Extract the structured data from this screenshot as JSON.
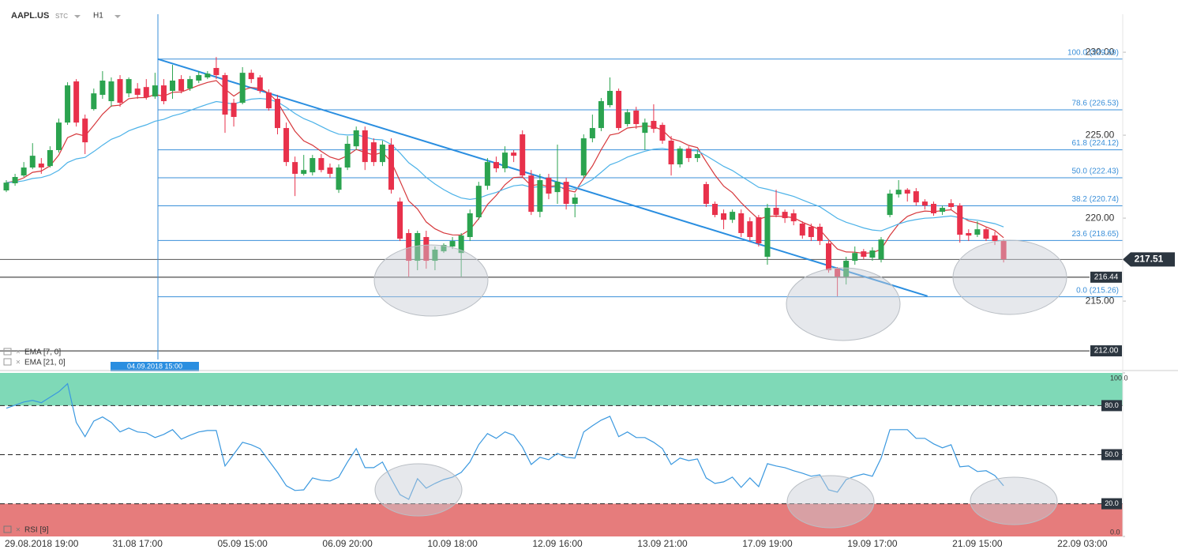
{
  "header": {
    "symbol": "AAPL.US",
    "type": "STC",
    "interval": "H1"
  },
  "chart_data": [
    {
      "type": "candlestick",
      "categories": [
        null,
        null,
        null,
        "29.08.2018 19:00",
        null,
        null,
        null,
        null,
        null,
        null,
        null,
        null,
        null,
        null,
        null,
        "31.08 17:00",
        null,
        null,
        null,
        null,
        null,
        null,
        null,
        null,
        null,
        null,
        null,
        "05.09 15:00",
        null,
        null,
        null,
        null,
        null,
        null,
        null,
        null,
        null,
        null,
        null,
        "06.09 20:00",
        null,
        null,
        null,
        null,
        null,
        null,
        null,
        null,
        null,
        null,
        null,
        "10.09 18:00",
        null,
        null,
        null,
        null,
        null,
        null,
        null,
        null,
        null,
        null,
        null,
        "12.09 16:00",
        null,
        null,
        null,
        null,
        null,
        null,
        null,
        null,
        null,
        null,
        null,
        "13.09 21:00",
        null,
        null,
        null,
        null,
        null,
        null,
        null,
        null,
        null,
        null,
        null,
        "17.09 19:00",
        null,
        null,
        null,
        null,
        null,
        null,
        null,
        null,
        null,
        null,
        null,
        "19.09 17:00",
        null,
        null,
        null,
        null,
        null,
        null,
        null,
        null,
        null,
        null,
        null,
        "21.09 15:00",
        null,
        null,
        null,
        null,
        null,
        null,
        null,
        null,
        null,
        null,
        null,
        "22.09 03:00"
      ],
      "open": [
        221.67,
        222.1,
        222.57,
        223.05,
        223.29,
        223.14,
        224.1,
        225.76,
        228.24,
        226.0,
        226.57,
        227.43,
        227.05,
        228.38,
        227.52,
        227.81,
        227.9,
        227.33,
        228.0,
        227.67,
        228.38,
        227.81,
        228.29,
        228.48,
        229.05,
        228.62,
        226.95,
        226.95,
        228.76,
        228.48,
        227.57,
        227.19,
        225.43,
        223.38,
        222.67,
        222.76,
        223.62,
        223.05,
        221.71,
        223.05,
        224.33,
        225.29,
        224.57,
        223.38,
        224.43,
        221.0,
        219.1,
        217.43,
        218.86,
        217.43,
        218.0,
        218.29,
        217.9,
        218.86,
        220.05,
        221.95,
        223.38,
        223.0,
        223.95,
        225.05,
        222.57,
        220.38,
        222.43,
        221.57,
        222.19,
        220.86,
        222.57,
        224.81,
        225.43,
        226.81,
        227.67,
        225.67,
        226.48,
        225.14,
        225.86,
        225.62,
        224.67,
        223.24,
        224.19,
        223.62,
        222.05,
        220.86,
        220.29,
        219.9,
        220.29,
        219.81,
        220.05,
        217.67,
        220.62,
        220.38,
        220.29,
        219.67,
        219.48,
        219.48,
        218.48,
        216.95,
        216.48,
        217.43,
        218.0,
        217.62,
        217.52,
        220.19,
        221.43,
        221.71,
        221.62,
        221.0,
        220.86,
        220.38,
        220.9,
        220.76,
        219.1,
        219.0,
        219.33,
        218.95,
        218.62,
        null,
        null,
        null,
        null,
        null,
        null,
        null,
        null,
        null
      ],
      "high": [
        222.29,
        222.67,
        223.38,
        224.52,
        223.62,
        224.33,
        226.0,
        228.19,
        228.38,
        226.24,
        227.81,
        228.86,
        228.48,
        228.62,
        228.48,
        228.14,
        228.38,
        228.76,
        228.38,
        229.24,
        228.62,
        228.57,
        228.86,
        228.86,
        229.71,
        228.76,
        227.19,
        229.1,
        228.95,
        228.62,
        227.76,
        227.43,
        225.76,
        223.71,
        223.81,
        223.81,
        223.86,
        223.29,
        223.24,
        224.95,
        225.52,
        225.52,
        224.81,
        224.67,
        224.81,
        221.24,
        219.33,
        219.24,
        219.24,
        218.29,
        218.48,
        218.86,
        219.1,
        220.52,
        222.19,
        223.62,
        223.71,
        224.33,
        224.1,
        225.29,
        222.9,
        222.67,
        222.67,
        224.43,
        222.43,
        221.48,
        225.05,
        226.24,
        227.24,
        228.48,
        227.81,
        226.57,
        226.71,
        226.0,
        226.86,
        225.76,
        224.95,
        224.33,
        224.33,
        224.1,
        222.19,
        221.0,
        220.52,
        220.52,
        220.52,
        220.05,
        220.19,
        220.86,
        221.71,
        220.52,
        220.52,
        219.81,
        219.67,
        219.67,
        218.62,
        217.05,
        217.67,
        218.29,
        218.14,
        218.24,
        218.86,
        221.71,
        222.29,
        221.81,
        221.81,
        221.14,
        221.0,
        220.76,
        221.14,
        220.9,
        219.33,
        219.81,
        219.43,
        219.19,
        218.71,
        null,
        null,
        null,
        null,
        null,
        null,
        null,
        null,
        null
      ],
      "low": [
        221.57,
        221.95,
        222.48,
        222.95,
        222.67,
        223.05,
        223.95,
        225.62,
        225.52,
        223.86,
        226.48,
        227.19,
        226.71,
        226.71,
        227.29,
        227.19,
        227.14,
        227.19,
        226.86,
        227.19,
        227.52,
        227.67,
        228.14,
        228.38,
        228.38,
        225.14,
        225.52,
        226.86,
        228.14,
        227.52,
        226.48,
        225.05,
        223.14,
        221.33,
        222.57,
        222.57,
        222.76,
        222.43,
        221.52,
        222.9,
        224.1,
        222.9,
        223.14,
        223.14,
        221.48,
        218.62,
        216.48,
        216.86,
        216.95,
        216.86,
        217.9,
        218.14,
        216.48,
        218.62,
        219.9,
        221.71,
        222.76,
        222.76,
        223.38,
        222.43,
        220.19,
        220.05,
        221.14,
        220.86,
        220.52,
        220.05,
        222.43,
        224.57,
        225.24,
        226.67,
        225.29,
        225.52,
        225.38,
        224.1,
        225.14,
        224.48,
        222.57,
        223.05,
        223.38,
        223.38,
        220.67,
        220.05,
        219.33,
        219.71,
        218.86,
        218.62,
        218.29,
        217.19,
        220.05,
        219.71,
        219.57,
        218.76,
        218.62,
        218.38,
        216.71,
        215.29,
        216.0,
        217.19,
        217.52,
        217.43,
        217.33,
        220.05,
        221.24,
        221.0,
        220.76,
        220.52,
        220.14,
        220.19,
        220.52,
        218.52,
        218.62,
        218.86,
        218.62,
        218.38,
        217.33,
        null,
        null,
        null,
        null,
        null,
        null,
        null,
        null,
        null
      ],
      "close": [
        222.14,
        222.48,
        223.05,
        223.76,
        223.05,
        224.1,
        225.76,
        228.0,
        225.76,
        224.57,
        227.52,
        228.29,
        228.24,
        226.95,
        228.38,
        227.43,
        227.29,
        228.0,
        227.05,
        228.29,
        227.67,
        228.38,
        228.62,
        228.71,
        228.62,
        226.24,
        226.1,
        228.76,
        228.38,
        227.67,
        226.62,
        225.43,
        223.38,
        222.67,
        222.9,
        223.62,
        222.9,
        222.67,
        223.05,
        224.48,
        225.29,
        223.38,
        223.38,
        224.43,
        221.71,
        218.76,
        217.43,
        219.1,
        217.43,
        218.1,
        218.38,
        218.62,
        218.95,
        220.29,
        221.95,
        223.38,
        223.0,
        223.95,
        223.76,
        222.57,
        220.38,
        222.29,
        221.48,
        222.19,
        220.86,
        221.24,
        224.81,
        225.43,
        227.05,
        227.67,
        225.43,
        226.38,
        225.67,
        225.76,
        225.38,
        224.67,
        223.24,
        224.19,
        223.62,
        223.86,
        220.86,
        220.19,
        219.9,
        220.38,
        219.1,
        218.86,
        218.48,
        220.62,
        220.19,
        220.0,
        219.81,
        218.95,
        218.86,
        218.62,
        216.86,
        216.48,
        217.43,
        217.9,
        217.67,
        218.05,
        218.71,
        221.48,
        221.71,
        221.48,
        220.95,
        220.76,
        220.29,
        220.62,
        220.67,
        219.0,
        218.95,
        219.33,
        218.76,
        218.62,
        217.52,
        null,
        null,
        null,
        null,
        null,
        null,
        null,
        null,
        null
      ],
      "up_color": "#2ba34f",
      "down_color": "#e8314b",
      "ylim": [
        211.48,
        232.29
      ],
      "yticks": [
        {
          "value": 215,
          "label": "215.00"
        },
        {
          "value": 220,
          "label": "220.00"
        },
        {
          "value": 225,
          "label": "225.00"
        },
        {
          "value": 230,
          "label": "230.00"
        }
      ],
      "fib_color": "#3a8fd9",
      "fib_levels": [
        {
          "value": 229.59,
          "label": "100.0 (229.59)"
        },
        {
          "value": 226.53,
          "label": "78.6 (226.53)"
        },
        {
          "value": 224.12,
          "label": "61.8 (224.12)"
        },
        {
          "value": 222.43,
          "label": "50.0 (222.43)"
        },
        {
          "value": 220.74,
          "label": "38.2 (220.74)"
        },
        {
          "value": 218.65,
          "label": "23.6 (218.65)"
        },
        {
          "value": 215.26,
          "label": "0.0 (215.26)"
        }
      ],
      "price_lines": [
        {
          "value": 216.44,
          "label": "216.44"
        },
        {
          "value": 212,
          "label": "212.00"
        }
      ],
      "last_price": {
        "value": 217.51,
        "label": "217.51"
      },
      "trendline": {
        "x": [
          17.3,
          105.3
        ],
        "y": [
          229.59,
          215.3
        ],
        "color": "#2a8ee0"
      },
      "cursor": {
        "label": "04.09.2018 15:00"
      },
      "ema": [
        {
          "label": "EMA [7, 0]",
          "color": "#d6383c"
        },
        {
          "label": "EMA [21, 0]",
          "color": "#4cb2e8"
        }
      ]
    },
    {
      "type": "line",
      "name": "RSI [9]",
      "color": "#3a98df",
      "values": [
        78.4,
        80.3,
        82.2,
        83.2,
        81.8,
        85.1,
        88.5,
        93.4,
        69.7,
        61.0,
        70.6,
        73.1,
        69.7,
        63.9,
        66.3,
        63.9,
        63.4,
        60.5,
        62.4,
        65.3,
        59.5,
        61.9,
        63.9,
        64.8,
        64.8,
        43.1,
        50.3,
        57.6,
        56.1,
        53.7,
        46.4,
        39.2,
        31.0,
        28.1,
        28.5,
        35.8,
        34.4,
        33.9,
        36.3,
        45.5,
        53.7,
        42.1,
        42.1,
        45.5,
        35.3,
        25.6,
        22.7,
        35.3,
        29.5,
        32.4,
        34.8,
        36.3,
        39.2,
        45.5,
        56.1,
        62.9,
        60.0,
        63.9,
        61.9,
        54.7,
        44.0,
        48.4,
        46.9,
        50.8,
        48.4,
        47.9,
        63.9,
        67.7,
        71.1,
        73.5,
        61.0,
        63.9,
        60.5,
        60.5,
        57.6,
        53.7,
        44.0,
        47.9,
        46.4,
        47.4,
        35.8,
        32.4,
        33.4,
        36.3,
        30.0,
        35.8,
        30.5,
        44.5,
        43.1,
        42.1,
        40.2,
        38.7,
        36.8,
        37.7,
        28.5,
        27.1,
        34.8,
        36.8,
        38.2,
        36.8,
        47.9,
        65.3,
        65.3,
        65.3,
        60.0,
        60.0,
        56.6,
        54.2,
        56.1,
        42.6,
        43.1,
        39.7,
        40.2,
        37.3,
        31.0,
        null,
        null,
        null,
        null,
        null,
        null,
        null,
        null,
        null
      ],
      "ylim": [
        0,
        100
      ],
      "yticks": [
        {
          "value": 0,
          "label": "0.0"
        },
        {
          "value": 20,
          "label": "20.0"
        },
        {
          "value": 50,
          "label": "50.0"
        },
        {
          "value": 80,
          "label": "80.0"
        },
        {
          "value": 100,
          "label": "100.0"
        }
      ],
      "zones": [
        {
          "from": 80,
          "to": 100,
          "color": "#7fd9b7"
        },
        {
          "from": 0,
          "to": 20,
          "color": "#e67c7c"
        }
      ]
    }
  ]
}
